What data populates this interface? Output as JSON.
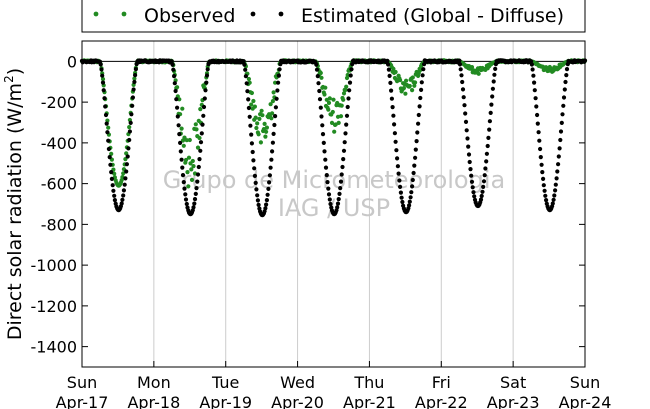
{
  "chart_data": {
    "type": "scatter",
    "ylabel": "Direct solar radiation (W/m",
    "ylabel_sup": "2",
    "ylabel_close": ")",
    "ylim": [
      -1500,
      100
    ],
    "yticks": [
      0,
      -200,
      -400,
      -600,
      -800,
      -1000,
      -1200,
      -1400
    ],
    "xlim": [
      0,
      7
    ],
    "xticks": [
      {
        "day": "Sun",
        "date": "Apr-17"
      },
      {
        "day": "Mon",
        "date": "Apr-18"
      },
      {
        "day": "Tue",
        "date": "Apr-19"
      },
      {
        "day": "Wed",
        "date": "Apr-20"
      },
      {
        "day": "Thu",
        "date": "Apr-21"
      },
      {
        "day": "Fri",
        "date": "Apr-22"
      },
      {
        "day": "Sat",
        "date": "Apr-23"
      },
      {
        "day": "Sun",
        "date": "Apr-24"
      }
    ],
    "grid": "vertical",
    "legend_position": "top",
    "series": [
      {
        "name": "Observed",
        "color": "#228b22",
        "marker": "dot",
        "daily_minimum": [
          -610,
          -600,
          -430,
          -330,
          -170,
          -60,
          -50
        ]
      },
      {
        "name": "Estimated (Global - Diffuse)",
        "color": "#000000",
        "marker": "dot",
        "daily_minimum": [
          -730,
          -750,
          -755,
          -750,
          -740,
          -710,
          -730
        ]
      }
    ],
    "watermark": [
      "Grupo de Micrometeorologia",
      "IAG / USP"
    ]
  }
}
